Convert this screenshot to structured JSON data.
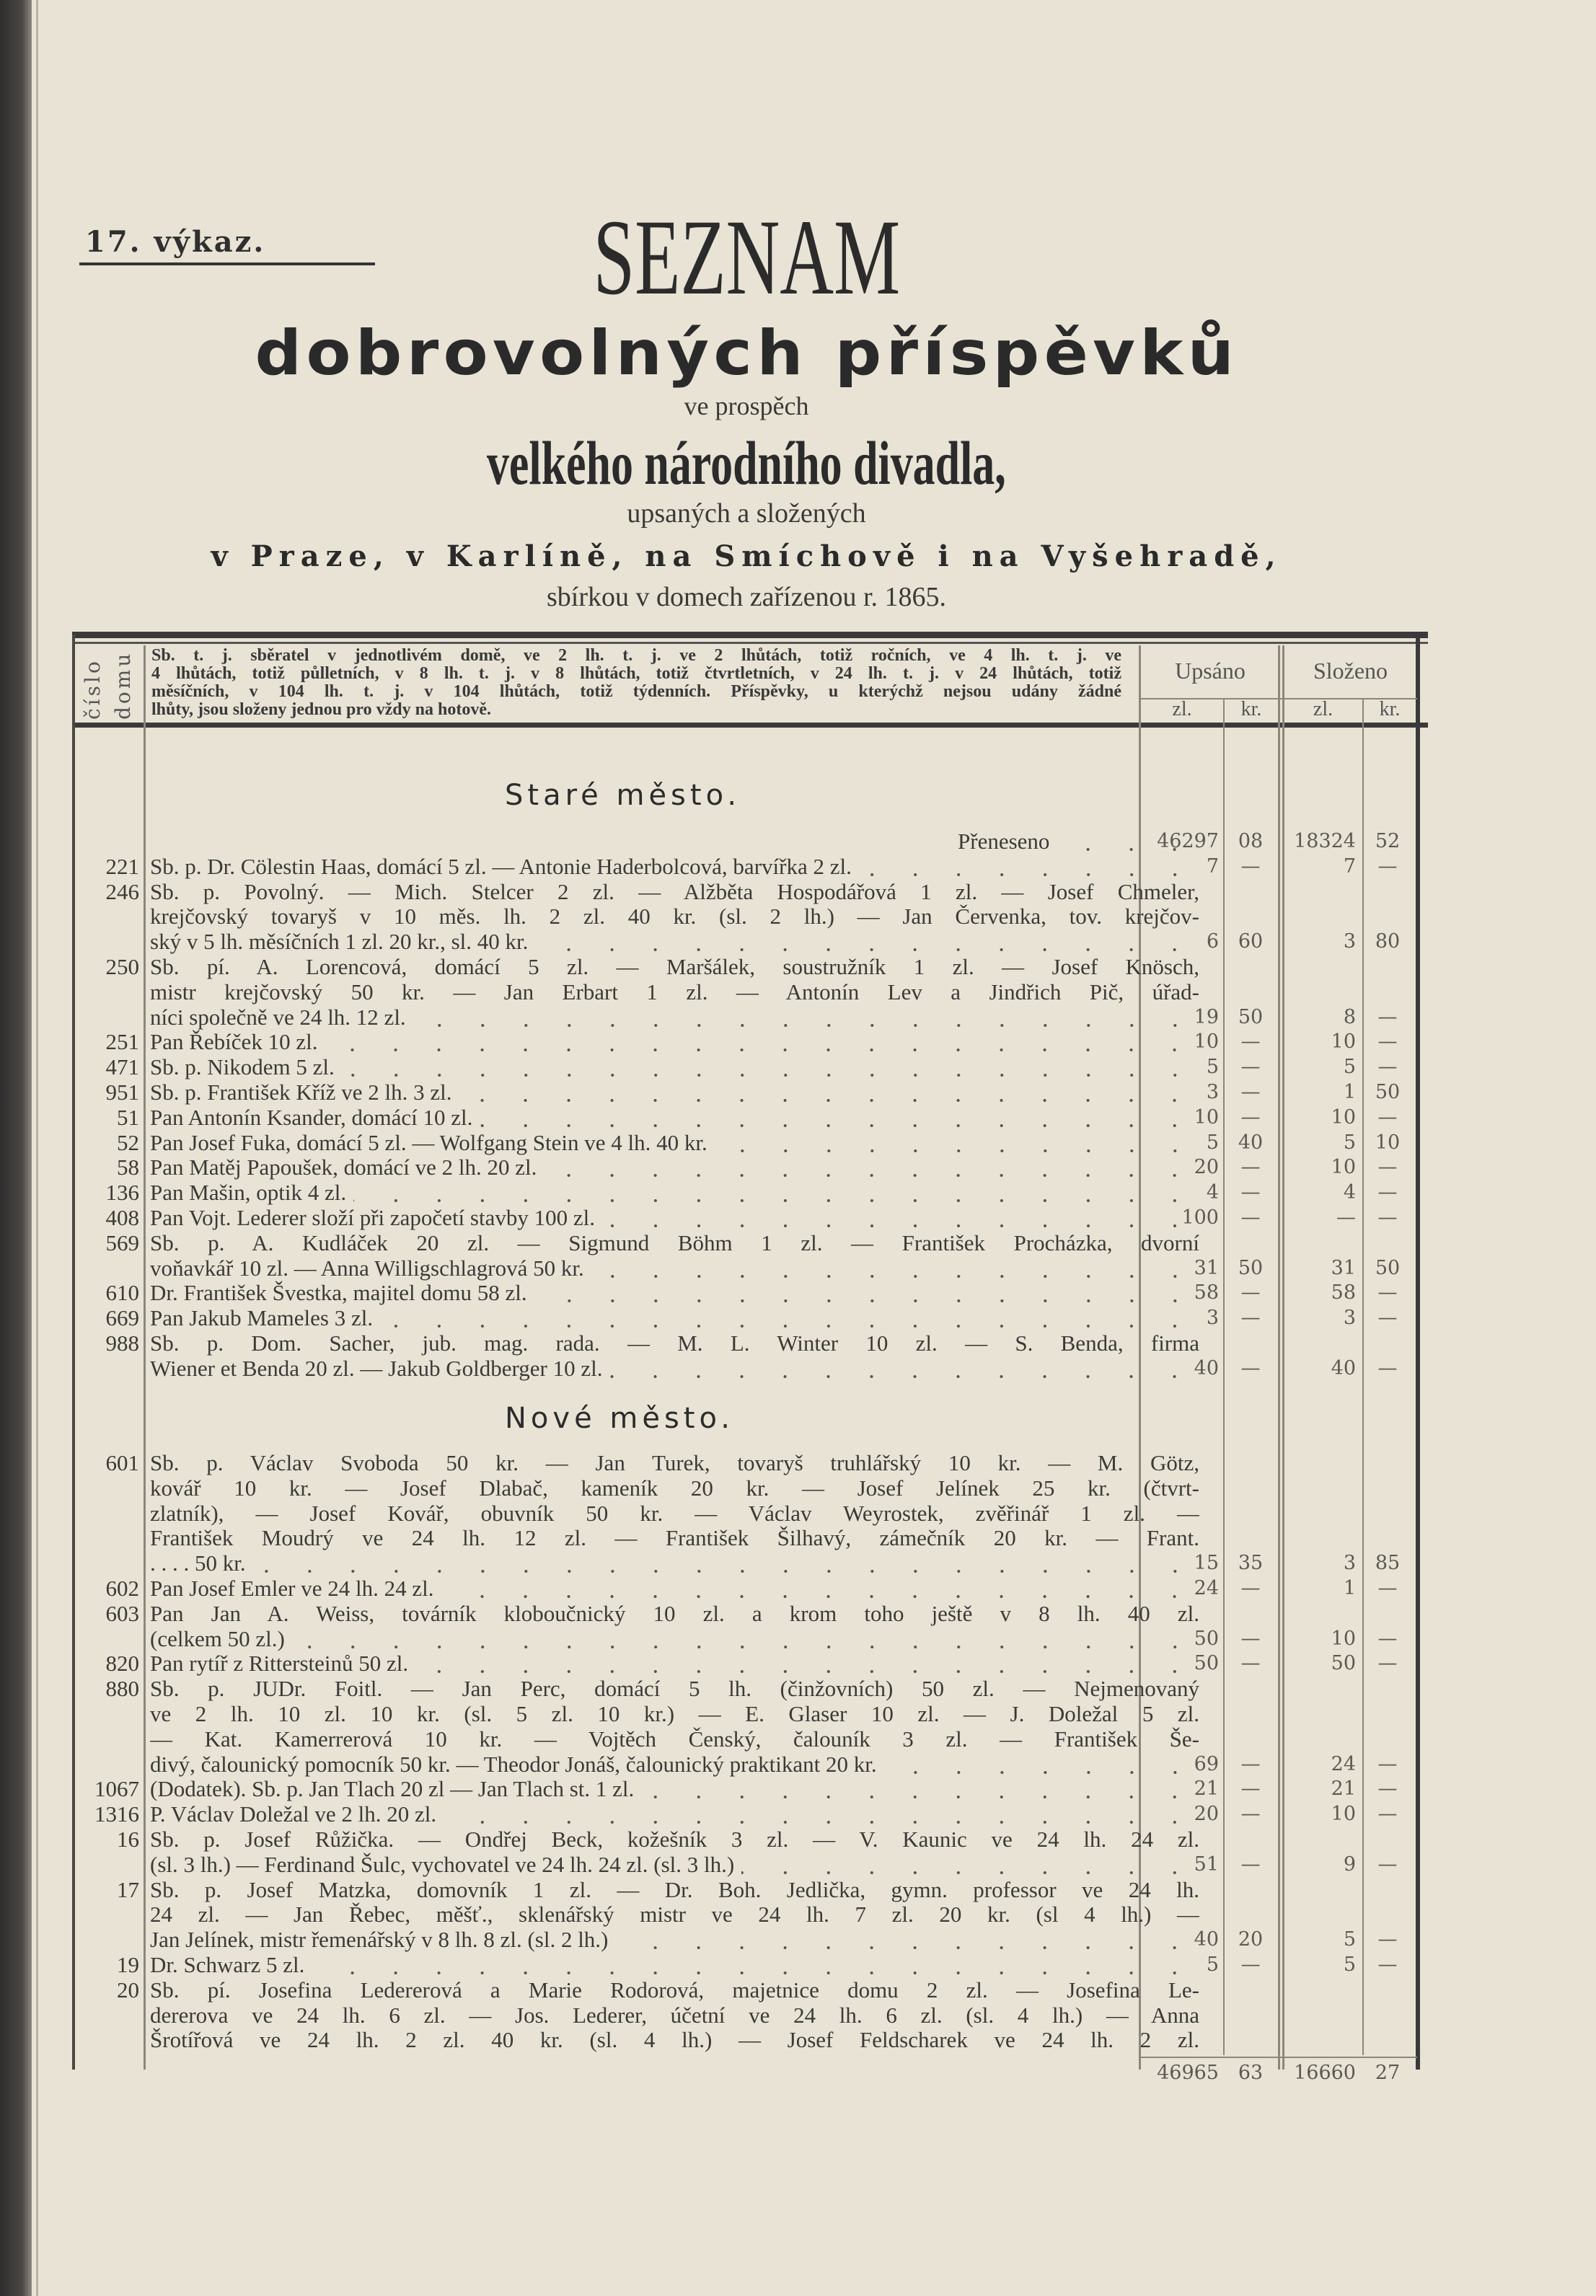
{
  "header": {
    "report_no": "17. výkaz.",
    "title": "SEZNAM",
    "subtitle": "dobrovolných příspěvků",
    "line3": "ve prospěch",
    "line4": "velkého národního divadla,",
    "line5": "upsaných a složených",
    "line6": "v Praze, v Karlíně, na Smíchově i na Vyšehradě,",
    "line7": "sbírkou v domech zařízenou r. 1865."
  },
  "table_header": {
    "number_col": [
      "číslo",
      "domu"
    ],
    "description": [
      "Sb. t. j. sběratel v jednotlivém domě, ve 2 lh. t. j. ve 2 lhůtách, totiž ročních, ve 4 lh. t. j. ve",
      "4 lhůtách, totiž půlletních, v 8 lh. t. j. v 8 lhůtách, totiž čtvrtletních, v 24 lh. t. j. v 24 lhůtách, totiž",
      "měsíčních, v 104 lh. t. j. v 104 lhůtách, totiž týdenních. Příspěvky, u kterýchž nejsou udány žádné",
      "lhůty, jsou složeny jednou pro vždy na hotově."
    ],
    "subscribed": "Upsáno",
    "paid": "Složeno",
    "zl": "zl.",
    "kr": "kr."
  },
  "sections": [
    {
      "title": "Staré město.",
      "rows": [
        {
          "no": "",
          "lines": [
            "Přeneseno"
          ],
          "carry": true,
          "u_zl": "46297",
          "u_kr": "08",
          "s_zl": "18324",
          "s_kr": "52"
        },
        {
          "no": "221",
          "lines": [
            "Sb. p. Dr. Cölestin Haas, domácí 5 zl. — Antonie Haderbolcová, barvířka 2 zl."
          ],
          "u_zl": "7",
          "u_kr": "—",
          "s_zl": "7",
          "s_kr": "—"
        },
        {
          "no": "246",
          "lines": [
            "Sb. p. Povolný. — Mich. Stelcer 2 zl. — Alžběta Hospodářová 1 zl. — Josef Chmeler,",
            "krejčovský tovaryš v 10 měs. lh. 2 zl. 40 kr. (sl. 2 lh.) — Jan Červenka, tov. krejčov-",
            "ský v 5 lh. měsíčních 1 zl. 20 kr., sl. 40 kr."
          ],
          "u_zl": "6",
          "u_kr": "60",
          "s_zl": "3",
          "s_kr": "80"
        },
        {
          "no": "250",
          "lines": [
            "Sb. pí. A. Lorencová, domácí 5 zl. — Maršálek, soustružník 1 zl. — Josef Knösch,",
            "mistr krejčovský 50 kr. — Jan Erbart 1 zl. — Antonín Lev a Jindřich Pič, úřad-",
            "níci společně ve 24 lh. 12 zl."
          ],
          "u_zl": "19",
          "u_kr": "50",
          "s_zl": "8",
          "s_kr": "—"
        },
        {
          "no": "251",
          "lines": [
            "Pan Řebíček 10 zl."
          ],
          "u_zl": "10",
          "u_kr": "—",
          "s_zl": "10",
          "s_kr": "—"
        },
        {
          "no": "471",
          "lines": [
            "Sb. p. Nikodem 5 zl."
          ],
          "u_zl": "5",
          "u_kr": "—",
          "s_zl": "5",
          "s_kr": "—"
        },
        {
          "no": "951",
          "lines": [
            "Sb. p. František Kříž ve 2 lh. 3 zl."
          ],
          "u_zl": "3",
          "u_kr": "—",
          "s_zl": "1",
          "s_kr": "50"
        },
        {
          "no": "51",
          "lines": [
            "Pan Antonín Ksander, domácí 10 zl."
          ],
          "u_zl": "10",
          "u_kr": "—",
          "s_zl": "10",
          "s_kr": "—"
        },
        {
          "no": "52",
          "lines": [
            "Pan Josef Fuka, domácí 5 zl. — Wolfgang Stein ve 4 lh. 40 kr."
          ],
          "u_zl": "5",
          "u_kr": "40",
          "s_zl": "5",
          "s_kr": "10"
        },
        {
          "no": "58",
          "lines": [
            "Pan Matěj Papoušek, domácí ve 2 lh. 20 zl."
          ],
          "u_zl": "20",
          "u_kr": "—",
          "s_zl": "10",
          "s_kr": "—"
        },
        {
          "no": "136",
          "lines": [
            "Pan Mašin, optik 4 zl."
          ],
          "u_zl": "4",
          "u_kr": "—",
          "s_zl": "4",
          "s_kr": "—"
        },
        {
          "no": "408",
          "lines": [
            "Pan Vojt. Lederer složí při započetí stavby 100 zl."
          ],
          "u_zl": "100",
          "u_kr": "—",
          "s_zl": "—",
          "s_kr": "—"
        },
        {
          "no": "569",
          "lines": [
            "Sb. p. A. Kudláček 20 zl. — Sigmund Böhm 1 zl. — František Procházka, dvorní",
            "voňavkář 10 zl. — Anna Willigschlagrová 50 kr."
          ],
          "u_zl": "31",
          "u_kr": "50",
          "s_zl": "31",
          "s_kr": "50"
        },
        {
          "no": "610",
          "lines": [
            "Dr. František Švestka, majitel domu 58 zl."
          ],
          "u_zl": "58",
          "u_kr": "—",
          "s_zl": "58",
          "s_kr": "—"
        },
        {
          "no": "669",
          "lines": [
            "Pan Jakub Mameles 3 zl."
          ],
          "u_zl": "3",
          "u_kr": "—",
          "s_zl": "3",
          "s_kr": "—"
        },
        {
          "no": "988",
          "lines": [
            "Sb. p. Dom. Sacher, jub. mag. rada. — M. L. Winter 10 zl. — S. Benda, firma",
            "Wiener et Benda 20 zl. — Jakub Goldberger 10 zl."
          ],
          "u_zl": "40",
          "u_kr": "—",
          "s_zl": "40",
          "s_kr": "—"
        }
      ]
    },
    {
      "title": "Nové město.",
      "rows": [
        {
          "no": "601",
          "lines": [
            "Sb. p. Václav Svoboda 50 kr. — Jan Turek, tovaryš truhlářský 10 kr. — M. Götz,",
            "kovář 10 kr. — Josef Dlabač, kameník 20 kr. — Josef Jelínek 25 kr. (čtvrt-",
            "zlatník), — Josef Kovář, obuvník 50 kr. — Václav Weyrostek, zvěřinář 1 zl. —",
            "František Moudrý ve 24 lh. 12 zl. — František Šilhavý, zámečník 20 kr. — Frant.",
            ". . . . 50 kr."
          ],
          "u_zl": "15",
          "u_kr": "35",
          "s_zl": "3",
          "s_kr": "85"
        },
        {
          "no": "602",
          "lines": [
            "Pan Josef Emler ve 24 lh. 24 zl."
          ],
          "u_zl": "24",
          "u_kr": "—",
          "s_zl": "1",
          "s_kr": "—"
        },
        {
          "no": "603",
          "lines": [
            "Pan Jan A. Weiss, továrník kloboučnický 10 zl. a krom toho ještě v 8 lh. 40 zl.",
            "(celkem 50 zl.)"
          ],
          "u_zl": "50",
          "u_kr": "—",
          "s_zl": "10",
          "s_kr": "—"
        },
        {
          "no": "820",
          "lines": [
            "Pan rytíř z Rittersteinů 50 zl."
          ],
          "u_zl": "50",
          "u_kr": "—",
          "s_zl": "50",
          "s_kr": "—"
        },
        {
          "no": "880",
          "lines": [
            "Sb. p. JUDr. Foitl. — Jan Perc, domácí 5 lh. (činžovních) 50 zl. — Nejmenovaný",
            "ve 2 lh. 10 zl. 10 kr. (sl. 5 zl. 10 kr.) — E. Glaser 10 zl. — J. Doležal 5 zl.",
            "— Kat. Kamerrerová 10 kr. — Vojtěch Čenský, čalouník 3 zl. — František Še-",
            "divý, čalounický pomocník 50 kr. — Theodor Jonáš, čalounický praktikant 20 kr."
          ],
          "u_zl": "69",
          "u_kr": "—",
          "s_zl": "24",
          "s_kr": "—"
        },
        {
          "no": "1067",
          "lines": [
            "(Dodatek). Sb. p. Jan Tlach 20 zl — Jan Tlach st. 1 zl."
          ],
          "u_zl": "21",
          "u_kr": "—",
          "s_zl": "21",
          "s_kr": "—"
        },
        {
          "no": "1316",
          "lines": [
            "P. Václav Doležal ve 2 lh. 20 zl."
          ],
          "u_zl": "20",
          "u_kr": "—",
          "s_zl": "10",
          "s_kr": "—"
        },
        {
          "no": "16",
          "lines": [
            "Sb. p. Josef Růžička. — Ondřej Beck, kožešník 3 zl. — V. Kaunic ve 24 lh. 24 zl.",
            "(sl. 3 lh.) — Ferdinand Šulc, vychovatel ve 24 lh. 24 zl. (sl. 3 lh.)"
          ],
          "u_zl": "51",
          "u_kr": "—",
          "s_zl": "9",
          "s_kr": "—"
        },
        {
          "no": "17",
          "lines": [
            "Sb. p. Josef Matzka, domovník 1 zl. — Dr. Boh. Jedlička, gymn. professor ve 24 lh.",
            "24 zl. — Jan Řebec, měšť., sklenářský mistr ve 24 lh. 7 zl. 20 kr. (sl 4 lh.) —",
            "Jan Jelínek, mistr řemenářský v 8 lh. 8 zl. (sl. 2 lh.)"
          ],
          "u_zl": "40",
          "u_kr": "20",
          "s_zl": "5",
          "s_kr": "—"
        },
        {
          "no": "19",
          "lines": [
            "Dr. Schwarz 5 zl."
          ],
          "u_zl": "5",
          "u_kr": "—",
          "s_zl": "5",
          "s_kr": "—"
        },
        {
          "no": "20",
          "lines": [
            "Sb. pí. Josefina Ledererová a Marie Rodorová, majetnice domu 2 zl. — Josefina Le-",
            "dererova ve 24 lh. 6 zl. — Jos. Lederer, účetní ve 24 lh. 6 zl. (sl. 4 lh.) — Anna",
            "Šrotířová ve 24 lh. 2 zl. 40 kr. (sl. 4 lh.) — Josef Feldscharek ve 24 lh. 2 zl."
          ],
          "continued": true
        }
      ]
    }
  ],
  "totals": {
    "u_zl": "46965",
    "u_kr": "63",
    "s_zl": "16660",
    "s_kr": "27"
  }
}
